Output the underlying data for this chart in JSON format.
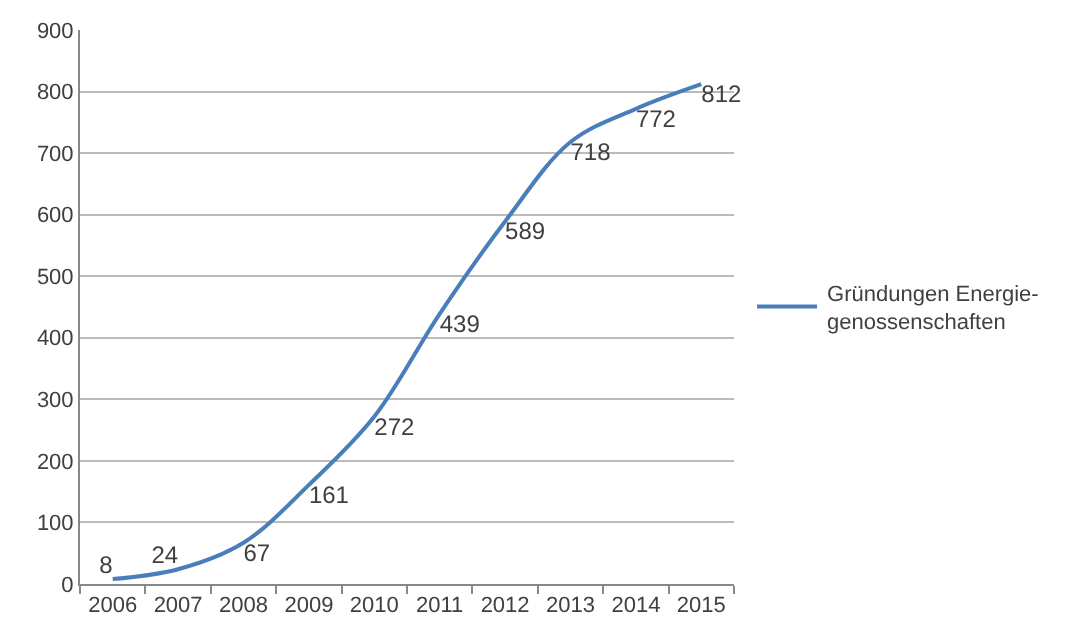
{
  "chart_data": {
    "type": "line",
    "categories": [
      "2006",
      "2007",
      "2008",
      "2009",
      "2010",
      "2011",
      "2012",
      "2013",
      "2014",
      "2015"
    ],
    "series": [
      {
        "name": "Gründungen Energie-\ngenossenschaften",
        "color": "#4a7ebb",
        "values": [
          8,
          24,
          67,
          161,
          272,
          439,
          589,
          718,
          772,
          812
        ]
      }
    ],
    "ylim": [
      0,
      900
    ],
    "yticks": [
      0,
      100,
      200,
      300,
      400,
      500,
      600,
      700,
      800,
      900
    ],
    "grid": "y",
    "legend": "right",
    "data_labels": true,
    "marker": "none",
    "line_style": "solid"
  }
}
